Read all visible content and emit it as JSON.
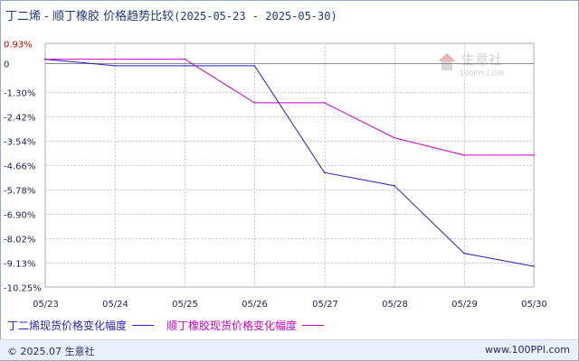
{
  "header": {
    "title": "丁二烯 - 顺丁橡胶 价格趋势比较",
    "date_range": "(2025-05-23 - 2025-05-30)"
  },
  "chart_data": {
    "type": "line",
    "x": [
      "05/23",
      "05/24",
      "05/25",
      "05/26",
      "05/27",
      "05/28",
      "05/29",
      "05/30"
    ],
    "y_ticks": [
      "0.93%",
      "0",
      "-1.30%",
      "-2.42%",
      "-3.54%",
      "-4.66%",
      "-5.78%",
      "-6.90%",
      "-8.02%",
      "-9.13%",
      "-10.25%"
    ],
    "y_tick_values": [
      0.93,
      0,
      -1.3,
      -2.42,
      -3.54,
      -4.66,
      -5.78,
      -6.9,
      -8.02,
      -9.13,
      -10.25
    ],
    "ylim": [
      -10.25,
      0.93
    ],
    "grid": true,
    "legend_position": "bottom-left",
    "series": [
      {
        "name": "丁二烯现货价格变化幅度",
        "color": "#1f1fcc",
        "values": [
          0.2,
          -0.1,
          -0.1,
          -0.1,
          -5.0,
          -5.6,
          -8.7,
          -9.3
        ]
      },
      {
        "name": "顺丁橡胶现货价格变化幅度",
        "color": "#cc00cc",
        "values": [
          0.2,
          0.2,
          0.2,
          -1.8,
          -1.8,
          -3.4,
          -4.2,
          -4.2
        ]
      }
    ]
  },
  "watermark": {
    "name": "生意社",
    "site": "100PPI.COM"
  },
  "footer": {
    "copyright": "© 2025.07 生意社",
    "site": "www.100PPI.com"
  }
}
